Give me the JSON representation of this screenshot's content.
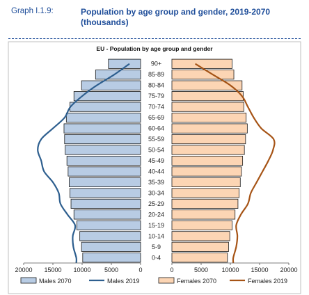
{
  "header": {
    "graph_label": "Graph I.1.9:",
    "title": "Population by age group and gender, 2019-2070 (thousands)"
  },
  "colors": {
    "males_2070_fill": "#b8cce4",
    "females_2070_fill": "#fcd5b4",
    "bar_stroke": "#1a1a1a",
    "males_2019_line": "#2e5f8f",
    "females_2019_line": "#a65416"
  },
  "chart_data": {
    "type": "bar",
    "orientation": "horizontal-population-pyramid",
    "title": "EU - Population by age group and gender",
    "categories": [
      "0-4",
      "5-9",
      "10-14",
      "15-19",
      "20-24",
      "25-29",
      "30-34",
      "35-39",
      "40-44",
      "45-49",
      "50-54",
      "55-59",
      "60-64",
      "65-69",
      "70-74",
      "75-79",
      "80-84",
      "85-89",
      "90+"
    ],
    "x_ticks_left": [
      "20000",
      "15000",
      "10000",
      "5000",
      "0"
    ],
    "x_ticks_right": [
      "0",
      "5000",
      "10000",
      "15000",
      "20000"
    ],
    "xlim": [
      0,
      20000
    ],
    "legend_position": "bottom",
    "series": [
      {
        "name": "Males 2070",
        "kind": "bar",
        "side": "left",
        "values": [
          9900,
          10100,
          10400,
          10900,
          11400,
          11900,
          12100,
          12200,
          12400,
          12600,
          12900,
          13000,
          13100,
          12700,
          12100,
          11400,
          10100,
          7700,
          5500
        ]
      },
      {
        "name": "Males 2019",
        "kind": "line",
        "side": "left",
        "values": [
          11000,
          11500,
          11600,
          11200,
          12500,
          13700,
          14000,
          15000,
          16500,
          17000,
          17600,
          17000,
          15000,
          13000,
          12000,
          10000,
          7500,
          4500,
          1900
        ]
      },
      {
        "name": "Females 2070",
        "kind": "bar",
        "side": "right",
        "values": [
          9500,
          9700,
          9900,
          10300,
          10800,
          11300,
          11500,
          11700,
          11900,
          12100,
          12400,
          12600,
          12900,
          12700,
          12300,
          12200,
          12000,
          10600,
          10300
        ]
      },
      {
        "name": "Females 2019",
        "kind": "line",
        "side": "right",
        "values": [
          10500,
          11000,
          11200,
          11000,
          11800,
          13000,
          13500,
          14500,
          15500,
          16500,
          17300,
          17400,
          15300,
          14000,
          13000,
          12000,
          10000,
          7000,
          4000
        ]
      }
    ]
  }
}
